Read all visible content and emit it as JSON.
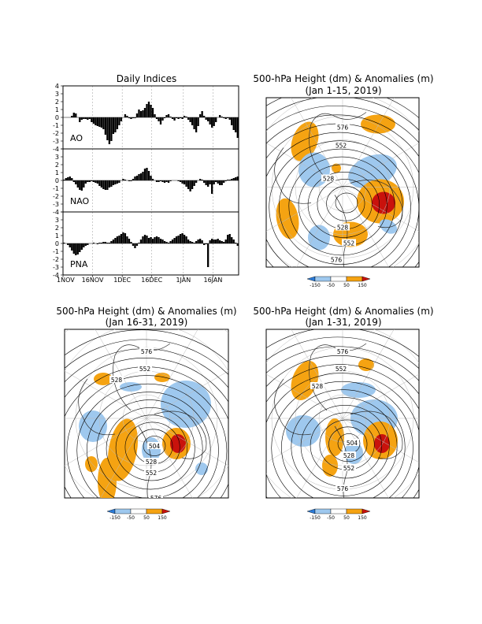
{
  "chart_data": [
    {
      "type": "bar",
      "title": "Daily Indices",
      "x_tick_labels": [
        "1NOV",
        "16NOV",
        "1DEC",
        "16DEC",
        "1JAN",
        "16JAN"
      ],
      "x_tick_days": [
        0,
        15,
        30,
        45,
        61,
        76
      ],
      "y_ticks": [
        "4",
        "3",
        "2",
        "1",
        "0",
        "-1",
        "-2",
        "-3",
        "-4"
      ],
      "ylim": [
        -4,
        4
      ],
      "panels": [
        {
          "name": "AO",
          "values": [
            0,
            0,
            0,
            0,
            0.2,
            0.6,
            0.5,
            0,
            -0.6,
            -0.3,
            -0.2,
            -0.2,
            -0.3,
            -0.2,
            -0.6,
            -0.8,
            -1,
            -1.1,
            -1.2,
            -1.3,
            -1.5,
            -2.2,
            -2.9,
            -3.4,
            -3,
            -2.1,
            -1.9,
            -1.5,
            -1,
            -0.5,
            0,
            0.4,
            0.2,
            -0.1,
            -0.2,
            -0.1,
            -0.1,
            0.5,
            1,
            0.8,
            0.9,
            1.2,
            1.7,
            2,
            1.6,
            1.2,
            0.4,
            -0.2,
            -0.5,
            -0.9,
            -0.4,
            -0.1,
            0.3,
            0.4,
            0.1,
            -0.2,
            -0.4,
            -0.1,
            -0.2,
            -0.1,
            -0.2,
            0.2,
            0.1,
            -0.3,
            -0.6,
            -1,
            -1.5,
            -1.9,
            -1.1,
            0.4,
            0.8,
            0.2,
            -0.3,
            -0.5,
            -0.9,
            -1.3,
            -1.1,
            -0.6,
            0,
            0.3,
            0.1,
            -0.1,
            -0.2,
            -0.1,
            -0.3,
            -1,
            -1.6,
            -1.9,
            -2.6
          ]
        },
        {
          "name": "NAO",
          "values": [
            0.1,
            0.3,
            0.4,
            0.5,
            0.3,
            -0.2,
            -0.5,
            -0.9,
            -1.2,
            -1.3,
            -0.9,
            -0.4,
            -0.2,
            -0.2,
            -0.1,
            -0.2,
            -0.3,
            -0.4,
            -0.7,
            -0.9,
            -1.1,
            -1.2,
            -1.2,
            -0.9,
            -0.8,
            -0.6,
            -0.5,
            -0.4,
            -0.3,
            0,
            0.2,
            0.1,
            0,
            -0.1,
            -0.1,
            0.2,
            0.5,
            0.6,
            0.8,
            0.9,
            1.1,
            1.5,
            1.6,
            1.2,
            0.6,
            0.2,
            0,
            -0.2,
            -0.2,
            -0.1,
            -0.2,
            -0.3,
            -0.2,
            -0.3,
            -0.1,
            0,
            0,
            0,
            -0.1,
            -0.2,
            -0.4,
            -0.5,
            -0.8,
            -1.1,
            -1.4,
            -1.1,
            -0.7,
            -0.3,
            0,
            0.2,
            0.1,
            -0.3,
            -0.6,
            -0.8,
            -0.5,
            -1.7,
            -0.5,
            -0.2,
            -0.4,
            -0.6,
            -0.6,
            -0.3,
            -0.1,
            0.1,
            0.1,
            0.2,
            0.3,
            0.4,
            0.5
          ]
        },
        {
          "name": "PNA",
          "values": [
            0.1,
            0,
            -0.2,
            -0.5,
            -0.9,
            -1.3,
            -1.5,
            -1.4,
            -1.1,
            -0.8,
            -0.5,
            -0.3,
            -0.2,
            0,
            0,
            0.1,
            0,
            -0.1,
            0.1,
            0.1,
            0.2,
            0.2,
            0.1,
            0.1,
            0.3,
            0.5,
            0.7,
            0.9,
            1,
            1.2,
            1.4,
            1.3,
            0.9,
            0.6,
            0.2,
            -0.3,
            -0.6,
            -0.3,
            0.1,
            0.5,
            0.9,
            1.1,
            1,
            0.7,
            0.8,
            0.6,
            0.8,
            0.9,
            0.8,
            0.6,
            0.5,
            0.3,
            0.2,
            0.1,
            0.3,
            0.5,
            0.7,
            0.9,
            1,
            1.2,
            1.3,
            1.1,
            0.9,
            0.5,
            0.3,
            0.2,
            0.1,
            0.3,
            0.5,
            0.6,
            0.4,
            -0.2,
            -0.1,
            -3,
            0.4,
            0.6,
            0.5,
            0.5,
            0.6,
            0.4,
            0.3,
            0.2,
            0.5,
            1.1,
            1.2,
            0.8,
            0.5,
            0.1,
            -0.3
          ]
        }
      ]
    },
    {
      "type": "map",
      "title": "500-hPa Height (dm) & Anomalies (m)",
      "period": "(Jan 1-15, 2019)",
      "contour_labels": [
        "576",
        "552",
        "528",
        "528",
        "552",
        "576"
      ]
    },
    {
      "type": "map",
      "title": "500-hPa Height (dm) & Anomalies (m)",
      "period": "(Jan 16-31, 2019)",
      "contour_labels": [
        "576",
        "552",
        "528",
        "504",
        "528",
        "552",
        "576"
      ]
    },
    {
      "type": "map",
      "title": "500-hPa Height (dm) & Anomalies (m)",
      "period": "(Jan 1-31, 2019)",
      "contour_labels": [
        "576",
        "552",
        "528",
        "504",
        "528",
        "552",
        "576"
      ]
    }
  ],
  "colorbar": {
    "labels": [
      "-150",
      "-50",
      "50",
      "150"
    ],
    "colors": [
      "#2b7bd8",
      "#9ec8ee",
      "#ffffff",
      "#f5a312",
      "#c9120c"
    ]
  },
  "colors": {
    "positive": "#f5a312",
    "positive_strong": "#c9120c",
    "negative": "#9ec8ee",
    "negative_strong": "#4d93e0"
  }
}
